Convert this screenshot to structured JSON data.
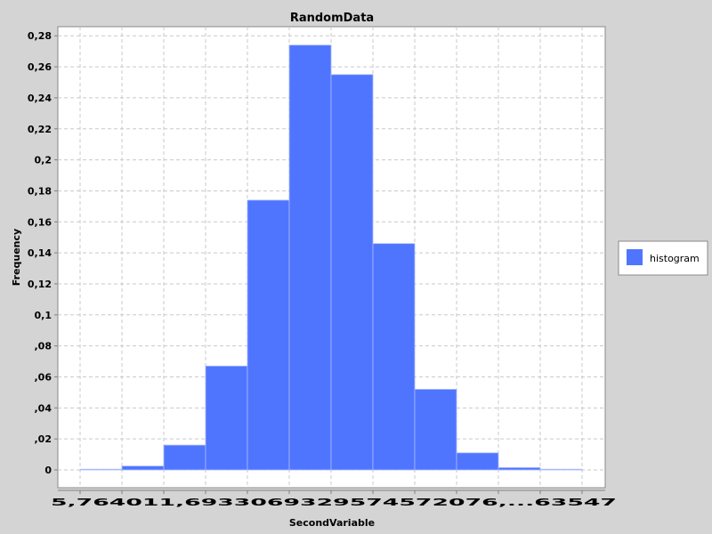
{
  "chart_data": {
    "type": "bar",
    "title": "RandomData",
    "xlabel": "SecondVariable",
    "ylabel": "Frequency",
    "ylim": [
      0,
      0.28
    ],
    "grid": true,
    "legend_position": "right",
    "legend": [
      "histogram"
    ],
    "yticks": [
      "0",
      ",02",
      ",04",
      ",06",
      ",08",
      "0,1",
      "0,12",
      "0,14",
      "0,16",
      "0,18",
      "0,2",
      "0,22",
      "0,24",
      "0,26",
      "0,28"
    ],
    "xtick_labels_overlapping": "5,764011,6933069329574572076,...63547",
    "bins": [
      {
        "index": 0,
        "value": 0.0
      },
      {
        "index": 1,
        "value": 0.0025
      },
      {
        "index": 2,
        "value": 0.016
      },
      {
        "index": 3,
        "value": 0.067
      },
      {
        "index": 4,
        "value": 0.174
      },
      {
        "index": 5,
        "value": 0.274
      },
      {
        "index": 6,
        "value": 0.255
      },
      {
        "index": 7,
        "value": 0.146
      },
      {
        "index": 8,
        "value": 0.052
      },
      {
        "index": 9,
        "value": 0.011
      },
      {
        "index": 10,
        "value": 0.0015
      },
      {
        "index": 11,
        "value": 0.0
      }
    ],
    "series": [
      {
        "name": "histogram",
        "color": "#4f75ff"
      }
    ]
  }
}
